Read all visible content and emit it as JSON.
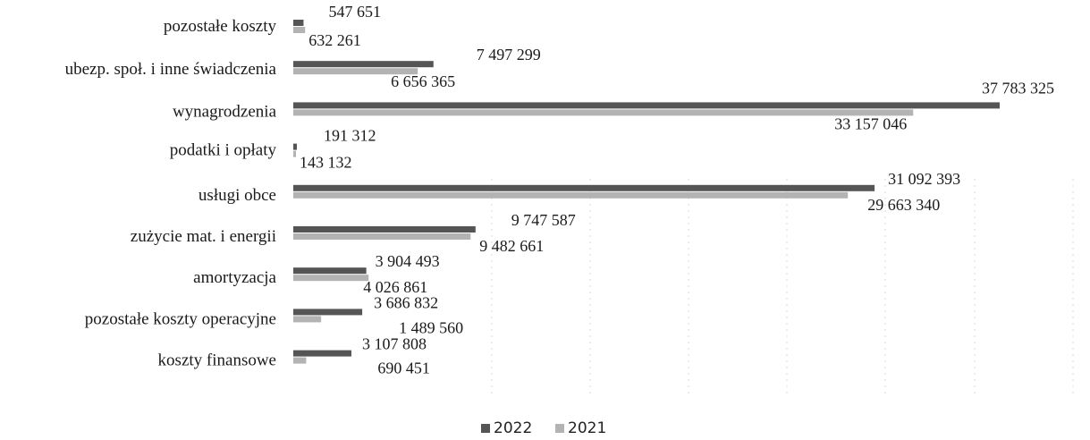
{
  "chart_data": {
    "type": "bar",
    "orientation": "horizontal",
    "categories": [
      "pozostałe koszty",
      "ubezp. społ. i inne świadczenia",
      "wynagrodzenia",
      "podatki i opłaty",
      "usługi obce",
      "zużycie mat. i energii",
      "amortyzacja",
      "pozostałe koszty operacyjne",
      "koszty finansowe"
    ],
    "series": [
      {
        "name": "2022",
        "color": "#555555",
        "values": [
          547651,
          7497299,
          37783325,
          191312,
          31092393,
          9747587,
          3904493,
          3686832,
          3107808
        ],
        "labels": [
          "547 651",
          "7 497 299",
          "37 783 325",
          "191 312",
          "31 092 393",
          "9 747 587",
          "3 904 493",
          "3 686 832",
          "3 107 808"
        ]
      },
      {
        "name": "2021",
        "color": "#b3b3b3",
        "values": [
          632261,
          6656365,
          33157046,
          143132,
          29663340,
          9482661,
          4026861,
          1489560,
          690451
        ],
        "labels": [
          "632 261",
          "6 656 365",
          "33 157 046",
          "143 132",
          "29 663 340",
          "9 482 661",
          "4 026 861",
          "1 489 560",
          "690 451"
        ]
      }
    ],
    "xlim": [
      0,
      37783325
    ],
    "grid": false,
    "legend_position": "bottom-center"
  }
}
